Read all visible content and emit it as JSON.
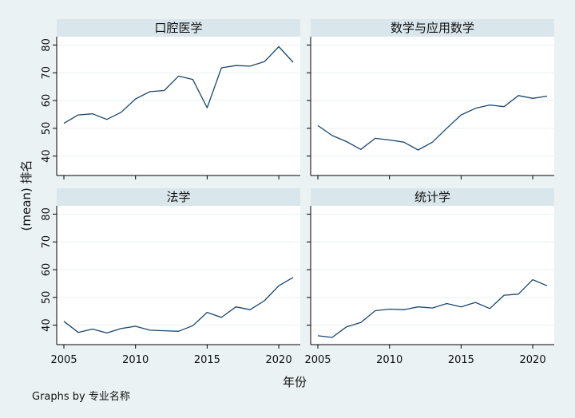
{
  "chart_data": {
    "type": "line",
    "x": [
      2005,
      2006,
      2007,
      2008,
      2009,
      2010,
      2011,
      2012,
      2013,
      2014,
      2015,
      2016,
      2017,
      2018,
      2019,
      2020,
      2021
    ],
    "xlabel": "年份",
    "ylabel": "(mean) 排名",
    "xlim": [
      2005,
      2021
    ],
    "ylim": [
      33,
      83
    ],
    "xticks": [
      2005,
      2010,
      2015,
      2020
    ],
    "yticks": [
      40,
      50,
      60,
      70,
      80
    ],
    "grid": true,
    "line_color": "#1a476f",
    "panels": [
      {
        "title": "口腔医学",
        "values": [
          51.8,
          54.8,
          55.2,
          53.2,
          55.8,
          60.6,
          63.2,
          63.6,
          68.8,
          67.6,
          57.4,
          71.8,
          72.6,
          72.4,
          74.0,
          79.4,
          73.8
        ]
      },
      {
        "title": "数学与应用数学",
        "values": [
          51.0,
          47.4,
          45.2,
          42.4,
          46.4,
          45.8,
          45.0,
          42.2,
          45.0,
          50.0,
          54.8,
          57.2,
          58.4,
          57.8,
          61.8,
          60.8,
          61.6
        ]
      },
      {
        "title": "法学",
        "values": [
          41.4,
          37.4,
          38.6,
          37.2,
          38.8,
          39.6,
          38.2,
          38.0,
          37.8,
          39.8,
          44.6,
          42.8,
          46.6,
          45.6,
          48.8,
          54.2,
          57.2
        ]
      },
      {
        "title": "统计学",
        "values": [
          36.2,
          35.6,
          39.4,
          41.0,
          45.2,
          45.8,
          45.6,
          46.6,
          46.2,
          47.8,
          46.6,
          48.2,
          46.0,
          50.8,
          51.2,
          56.4,
          54.2
        ]
      }
    ],
    "note": "Graphs by 专业名称"
  }
}
